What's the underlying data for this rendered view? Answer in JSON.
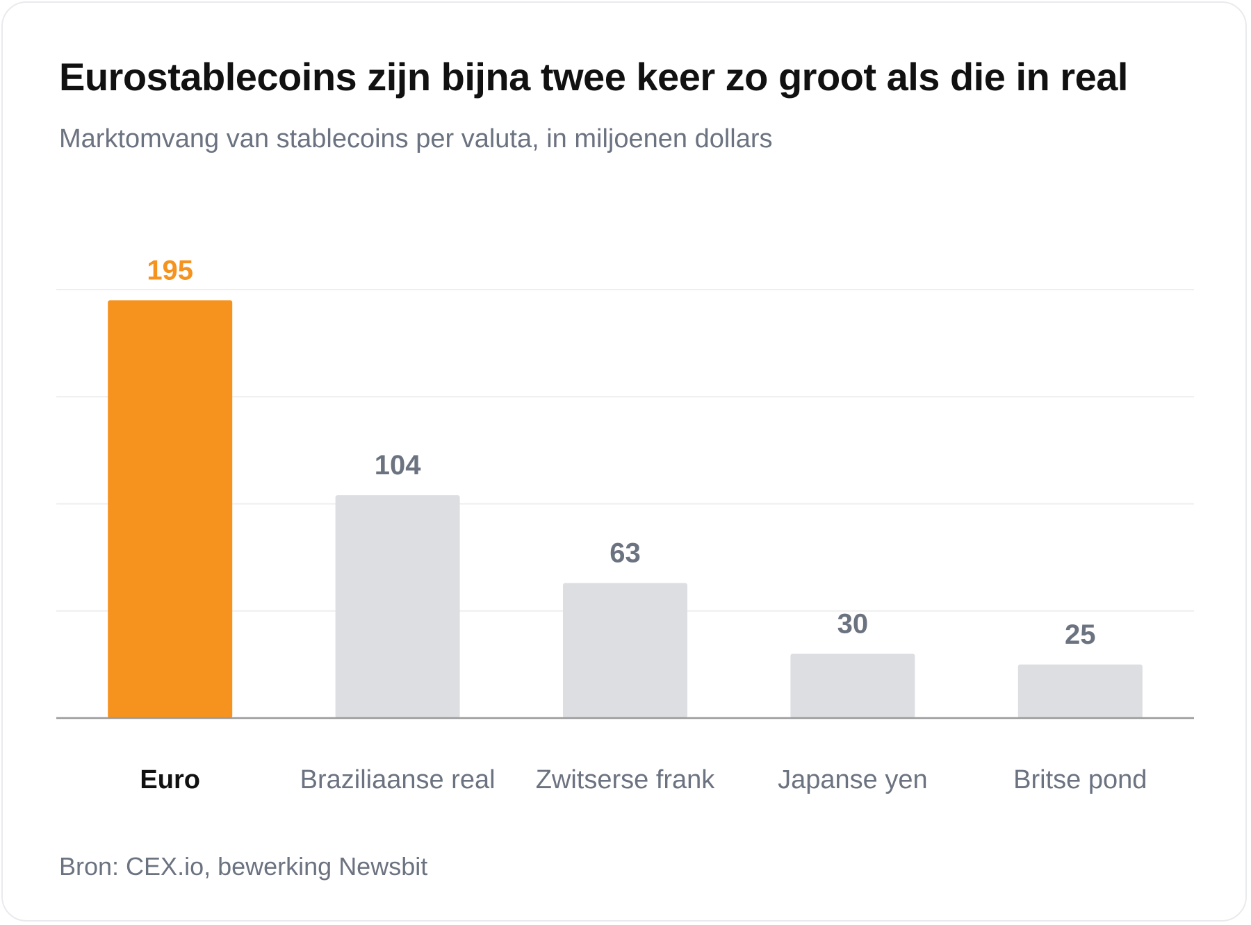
{
  "colors": {
    "highlight": "#f6921e",
    "bar": "#dcdee2",
    "value_label": "#6b7280",
    "highlight_category_label": "#111111",
    "category_label": "#6b7280",
    "gridline": "#eeeeee",
    "baseline": "#999999"
  },
  "chart_data": {
    "type": "bar",
    "title": "Eurostablecoins zijn bijna twee keer zo groot als die in real",
    "subtitle": "Marktomvang van stablecoins per valuta, in miljoenen dollars",
    "categories": [
      "Euro",
      "Braziliaanse real",
      "Zwitserse frank",
      "Japanse yen",
      "Britse pond"
    ],
    "values": [
      195,
      104,
      63,
      30,
      25
    ],
    "value_labels": [
      "195",
      "104",
      "63",
      "30",
      "25"
    ],
    "highlighted_category": "Euro",
    "xlabel": "",
    "ylabel": "",
    "ylim": [
      0,
      200
    ],
    "gridlines": [
      0,
      50,
      100,
      150,
      200
    ],
    "grid": true,
    "legend": "none",
    "source": "Bron: CEX.io, bewerking Newsbit"
  }
}
